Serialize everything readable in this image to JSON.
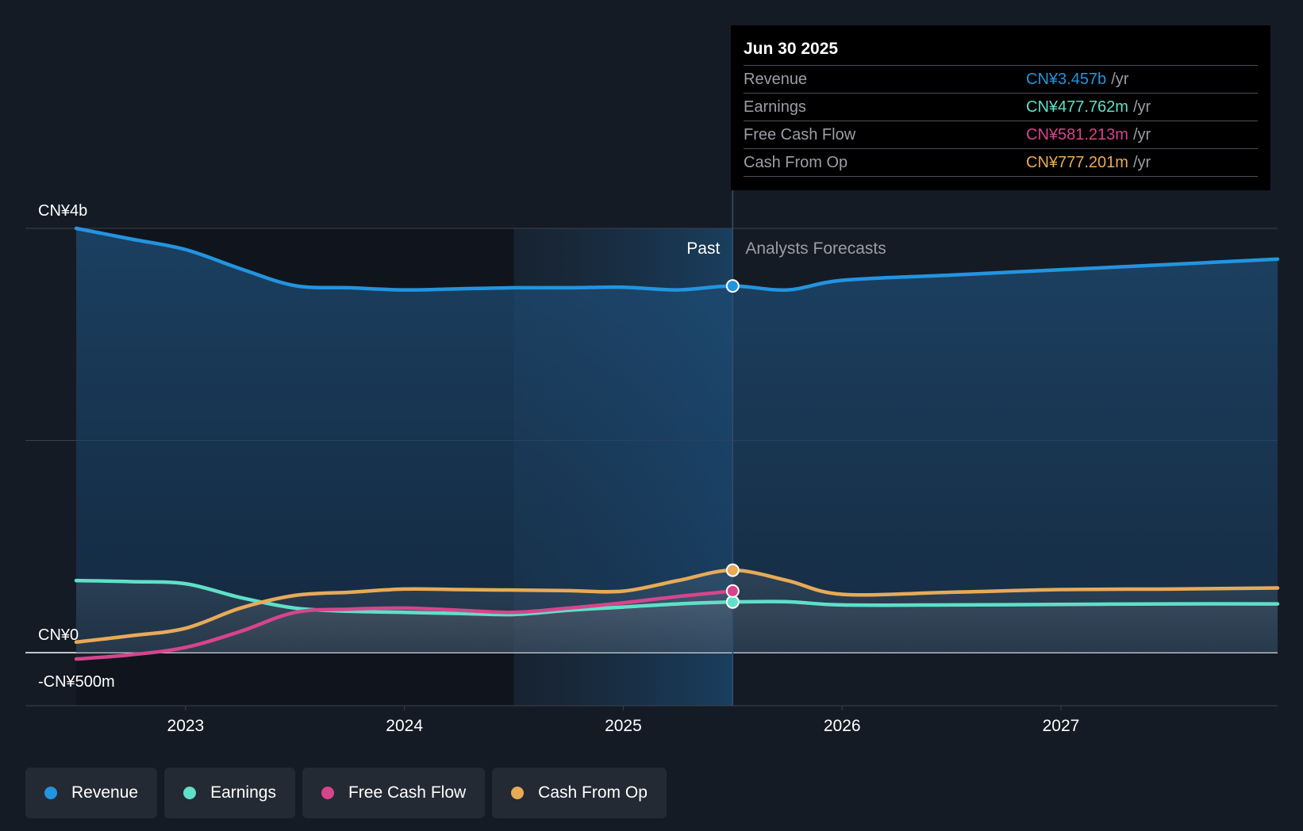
{
  "chart_data": {
    "type": "area",
    "title": "",
    "xlabel": "",
    "ylabel": "",
    "x_ticks": [
      "2023",
      "2024",
      "2025",
      "2026",
      "2027"
    ],
    "x_range": [
      2022.5,
      2027.99
    ],
    "ylim": [
      -500,
      4000
    ],
    "y_tick_labels": [
      {
        "value": 4000,
        "label": "CN¥4b"
      },
      {
        "value": 0,
        "label": "CN¥0"
      },
      {
        "value": -500,
        "label": "-CN¥500m"
      }
    ],
    "grid_values": [
      4000,
      2000,
      0
    ],
    "divider_x": 2025.5,
    "highlight_range": [
      2024.5,
      2025.5
    ],
    "region_labels": {
      "past": "Past",
      "forecast": "Analysts Forecasts"
    },
    "series": [
      {
        "name": "Revenue",
        "color": "#2394df",
        "x": [
          2022.5,
          2022.75,
          2023.0,
          2023.25,
          2023.5,
          2023.75,
          2024.0,
          2024.25,
          2024.5,
          2024.75,
          2025.0,
          2025.25,
          2025.5,
          2025.75,
          2026.0,
          2026.5,
          2027.0,
          2027.5,
          2027.99
        ],
        "values": [
          4000,
          3900,
          3800,
          3620,
          3460,
          3440,
          3420,
          3430,
          3440,
          3440,
          3445,
          3420,
          3457,
          3420,
          3510,
          3560,
          3610,
          3660,
          3710
        ]
      },
      {
        "name": "Earnings",
        "color": "#5fe0c8",
        "x": [
          2022.5,
          2022.75,
          2023.0,
          2023.25,
          2023.5,
          2023.75,
          2024.0,
          2024.25,
          2024.5,
          2024.75,
          2025.0,
          2025.25,
          2025.5,
          2025.75,
          2026.0,
          2026.5,
          2027.0,
          2027.5,
          2027.99
        ],
        "values": [
          680,
          670,
          650,
          520,
          420,
          390,
          380,
          370,
          360,
          400,
          430,
          460,
          477.762,
          480,
          450,
          450,
          455,
          460,
          460
        ]
      },
      {
        "name": "Free Cash Flow",
        "color": "#d6458c",
        "x": [
          2022.5,
          2022.75,
          2023.0,
          2023.25,
          2023.5,
          2023.75,
          2024.0,
          2024.25,
          2024.5,
          2024.75,
          2025.0,
          2025.25,
          2025.5
        ],
        "values": [
          -60,
          -20,
          50,
          200,
          380,
          410,
          420,
          400,
          380,
          420,
          470,
          530,
          581.213
        ]
      },
      {
        "name": "Cash From Op",
        "color": "#e8aa58",
        "x": [
          2022.5,
          2022.75,
          2023.0,
          2023.25,
          2023.5,
          2023.75,
          2024.0,
          2024.25,
          2024.5,
          2024.75,
          2025.0,
          2025.25,
          2025.5,
          2025.75,
          2026.0,
          2026.5,
          2027.0,
          2027.5,
          2027.99
        ],
        "values": [
          100,
          160,
          230,
          420,
          540,
          570,
          600,
          595,
          590,
          585,
          580,
          680,
          777.201,
          680,
          550,
          570,
          595,
          600,
          610
        ]
      }
    ],
    "tooltip": {
      "date": "Jun 30 2025",
      "x": 2025.5,
      "rows": [
        {
          "label": "Revenue",
          "value": "CN¥3.457b",
          "unit": "/yr",
          "color": "#2394df"
        },
        {
          "label": "Earnings",
          "value": "CN¥477.762m",
          "unit": "/yr",
          "color": "#5fe0c8"
        },
        {
          "label": "Free Cash Flow",
          "value": "CN¥581.213m",
          "unit": "/yr",
          "color": "#d6458c"
        },
        {
          "label": "Cash From Op",
          "value": "CN¥777.201m",
          "unit": "/yr",
          "color": "#e8aa58"
        }
      ]
    },
    "legend": [
      {
        "label": "Revenue",
        "color": "#2394df"
      },
      {
        "label": "Earnings",
        "color": "#5fe0c8"
      },
      {
        "label": "Free Cash Flow",
        "color": "#d6458c"
      },
      {
        "label": "Cash From Op",
        "color": "#e8aa58"
      }
    ]
  }
}
